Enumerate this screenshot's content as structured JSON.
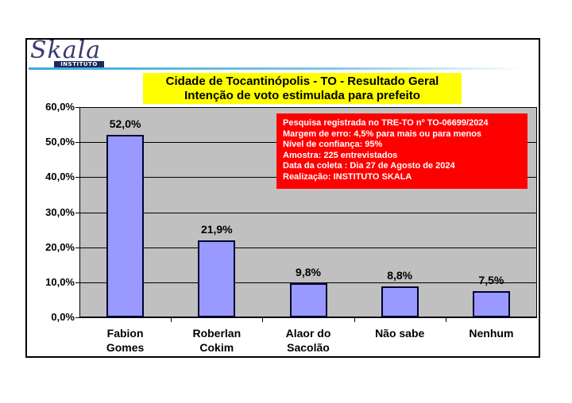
{
  "logo": {
    "name": "Skala",
    "badge": "INSTITUTO"
  },
  "title": {
    "line1": "Cidade de Tocantinópolis - TO - Resultado Geral",
    "line2": "Intenção de voto estimulada para prefeito"
  },
  "info_box": {
    "lines": [
      "Pesquisa registrada no TRE-TO nº TO-06699/2024",
      "Margem de erro: 4,5% para mais ou para menos",
      "Nível de confiança: 95%",
      "Amostra: 225 entrevistados",
      "Data da coleta : Dia 27 de Agosto de 2024",
      "Realização: INSTITUTO SKALA"
    ],
    "background": "#ff0000"
  },
  "colors": {
    "bar_fill": "#9999ff",
    "bar_border": "#000033",
    "plot_bg": "#c0c0c0",
    "title_bg": "#ffff00"
  },
  "y_ticks": [
    "0,0%",
    "10,0%",
    "20,0%",
    "30,0%",
    "40,0%",
    "50,0%",
    "60,0%"
  ],
  "chart_data": {
    "type": "bar",
    "title": "Cidade de Tocantinópolis - TO - Resultado Geral / Intenção de voto estimulada para prefeito",
    "categories": [
      "Fabion Gomes",
      "Roberlan Cokim",
      "Alaor do Sacolão",
      "Não sabe",
      "Nenhum"
    ],
    "category_lines": [
      [
        "Fabion",
        "Gomes"
      ],
      [
        "Roberlan",
        "Cokim"
      ],
      [
        "Alaor do",
        "Sacolão"
      ],
      [
        "Não sabe"
      ],
      [
        "Nenhum"
      ]
    ],
    "values": [
      52.0,
      21.9,
      9.8,
      8.8,
      7.5
    ],
    "value_labels": [
      "52,0%",
      "21,9%",
      "9,8%",
      "8,8%",
      "7,5%"
    ],
    "xlabel": "",
    "ylabel": "",
    "ylim": [
      0,
      60
    ],
    "y_tick_step": 10,
    "grid": true,
    "legend": "none"
  }
}
